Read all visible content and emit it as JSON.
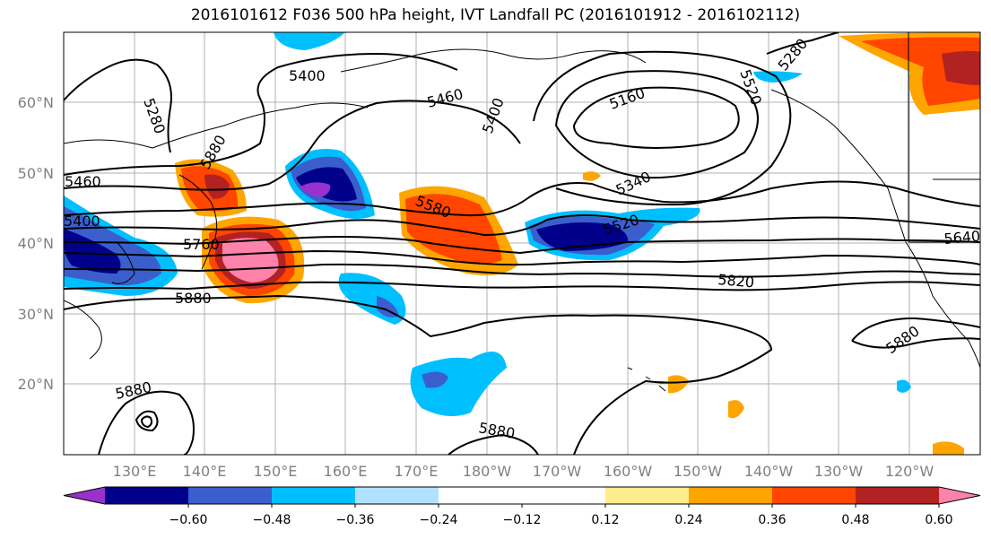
{
  "title": "2016101612 F036 500 hPa height, IVT Landfall PC (2016101912 - 2016102112)",
  "lat_labels": [
    "60°N",
    "50°N",
    "40°N",
    "30°N",
    "20°N"
  ],
  "lon_labels": [
    "130°E",
    "140°E",
    "150°E",
    "160°E",
    "170°E",
    "180°W",
    "170°W",
    "160°W",
    "150°W",
    "140°W",
    "130°W",
    "120°W"
  ],
  "colorbar": {
    "colors": [
      "#9932CC",
      "#00008B",
      "#3A5FCD",
      "#00BFFF",
      "#B0E2FF",
      "#FFFFFF",
      "#FFFFFF",
      "#FFEC8B",
      "#FFA500",
      "#FF4500",
      "#B22222",
      "#FF82AB"
    ],
    "tick_labels": [
      "−0.60",
      "−0.48",
      "−0.36",
      "−0.24",
      "−0.12",
      "0.12",
      "0.24",
      "0.36",
      "0.48",
      "0.60"
    ]
  },
  "contour_labels": [
    "5400",
    "5460",
    "5400",
    "5160",
    "5280",
    "5280",
    "5520",
    "5460",
    "5580",
    "5340",
    "5520",
    "5760",
    "5820",
    "5640",
    "5880",
    "5880",
    "5880",
    "5880",
    "5880",
    "5400"
  ],
  "colors": {
    "grid": "#b0b0b0",
    "contour": "#000000"
  }
}
